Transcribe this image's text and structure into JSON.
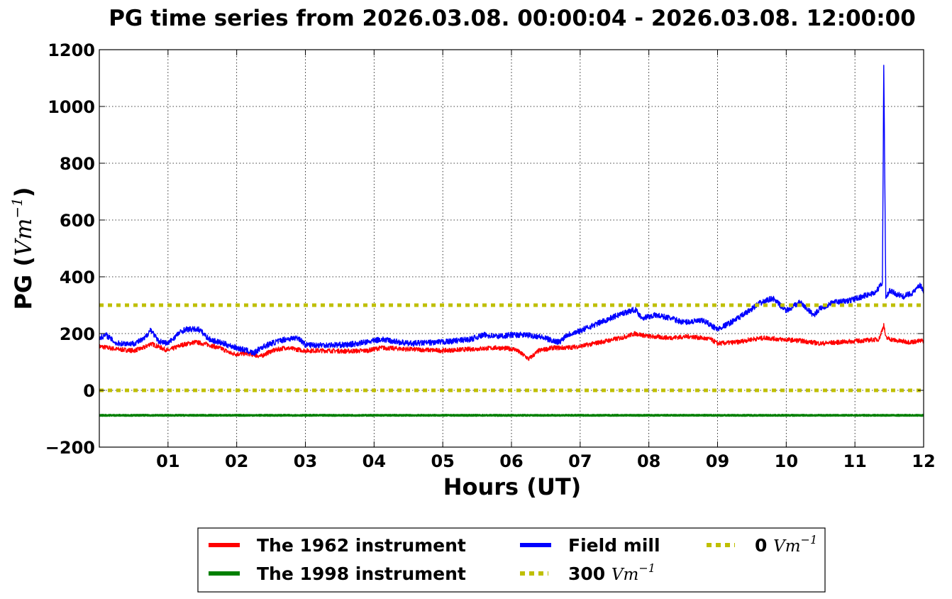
{
  "chart_data": {
    "type": "line",
    "title": "PG time series from 2026.03.08. 00:00:04 - 2026.03.08. 12:00:00",
    "xlabel": "Hours (UT)",
    "ylabel": {
      "prefix": "PG (",
      "unit": "Vm",
      "exp": "−1",
      "suffix": ")"
    },
    "xlim": [
      0,
      12
    ],
    "ylim": [
      -200,
      1200
    ],
    "grid": true,
    "x_ticks": [
      {
        "v": 1,
        "label": "01"
      },
      {
        "v": 2,
        "label": "02"
      },
      {
        "v": 3,
        "label": "03"
      },
      {
        "v": 4,
        "label": "04"
      },
      {
        "v": 5,
        "label": "05"
      },
      {
        "v": 6,
        "label": "06"
      },
      {
        "v": 7,
        "label": "07"
      },
      {
        "v": 8,
        "label": "08"
      },
      {
        "v": 9,
        "label": "09"
      },
      {
        "v": 10,
        "label": "10"
      },
      {
        "v": 11,
        "label": "11"
      },
      {
        "v": 12,
        "label": "12"
      }
    ],
    "y_ticks": [
      {
        "v": -200,
        "label": "−200"
      },
      {
        "v": 0,
        "label": "0"
      },
      {
        "v": 200,
        "label": "200"
      },
      {
        "v": 400,
        "label": "400"
      },
      {
        "v": 600,
        "label": "600"
      },
      {
        "v": 800,
        "label": "800"
      },
      {
        "v": 1000,
        "label": "1000"
      },
      {
        "v": 1200,
        "label": "1200"
      }
    ],
    "series": [
      {
        "name": "The 1962 instrument",
        "color": "#ff0000",
        "style": "solid",
        "x": [
          0,
          0.25,
          0.5,
          0.65,
          0.75,
          0.9,
          1.0,
          1.2,
          1.4,
          1.6,
          1.8,
          1.92,
          2.0,
          2.15,
          2.25,
          2.35,
          2.5,
          2.7,
          3.0,
          3.3,
          3.6,
          3.9,
          4.1,
          4.5,
          5.0,
          5.4,
          5.8,
          6.05,
          6.2,
          6.25,
          6.4,
          6.6,
          6.8,
          7.0,
          7.2,
          7.4,
          7.6,
          7.8,
          8.0,
          8.3,
          8.6,
          8.9,
          9.0,
          9.3,
          9.5,
          9.7,
          9.9,
          10.2,
          10.5,
          10.8,
          11.1,
          11.35,
          11.42,
          11.45,
          11.6,
          11.8,
          12.0
        ],
        "y": [
          155,
          145,
          140,
          150,
          165,
          150,
          140,
          160,
          170,
          160,
          145,
          130,
          128,
          130,
          125,
          120,
          138,
          150,
          140,
          140,
          138,
          140,
          150,
          145,
          140,
          145,
          150,
          145,
          120,
          110,
          140,
          150,
          150,
          155,
          165,
          175,
          185,
          200,
          190,
          185,
          190,
          180,
          165,
          170,
          180,
          185,
          180,
          175,
          165,
          170,
          175,
          180,
          230,
          185,
          175,
          170,
          175
        ]
      },
      {
        "name": "The 1998 instrument",
        "color": "#008000",
        "style": "solid",
        "x": [
          0,
          12
        ],
        "y": [
          -88,
          -88
        ]
      },
      {
        "name": "Field mill",
        "color": "#0000ff",
        "style": "solid",
        "x": [
          0,
          0.1,
          0.25,
          0.5,
          0.65,
          0.75,
          0.85,
          1.0,
          1.15,
          1.25,
          1.45,
          1.6,
          1.8,
          2.0,
          2.15,
          2.25,
          2.35,
          2.5,
          2.7,
          2.9,
          3.0,
          3.3,
          3.6,
          3.9,
          4.1,
          4.5,
          5.0,
          5.4,
          5.6,
          5.8,
          6.0,
          6.2,
          6.4,
          6.6,
          6.7,
          6.8,
          7.0,
          7.2,
          7.4,
          7.6,
          7.8,
          7.9,
          8.1,
          8.3,
          8.5,
          8.8,
          9.0,
          9.2,
          9.4,
          9.6,
          9.8,
          10.0,
          10.2,
          10.4,
          10.5,
          10.7,
          10.9,
          11.1,
          11.3,
          11.4,
          11.42,
          11.45,
          11.5,
          11.7,
          11.85,
          11.95,
          12.0
        ],
        "y": [
          185,
          195,
          165,
          165,
          180,
          215,
          175,
          165,
          200,
          215,
          215,
          180,
          165,
          150,
          140,
          130,
          150,
          165,
          180,
          185,
          160,
          160,
          160,
          170,
          180,
          165,
          170,
          180,
          195,
          190,
          195,
          195,
          190,
          175,
          170,
          195,
          210,
          230,
          250,
          270,
          285,
          255,
          265,
          255,
          240,
          245,
          215,
          240,
          270,
          305,
          325,
          280,
          310,
          265,
          290,
          310,
          315,
          330,
          345,
          380,
          1145,
          320,
          350,
          330,
          345,
          370,
          350
        ]
      },
      {
        "name": "300",
        "legend_unit": "Vm",
        "legend_exp": "−1",
        "color": "#bfbf00",
        "style": "dotted",
        "x": [
          0,
          12
        ],
        "y": [
          300,
          300
        ]
      },
      {
        "name": "0",
        "legend_unit": "Vm",
        "legend_exp": "−1",
        "color": "#bfbf00",
        "style": "dotted",
        "x": [
          0,
          12
        ],
        "y": [
          0,
          0
        ]
      }
    ],
    "legend": {
      "placement": "bottom-center",
      "items": [
        {
          "label": "The 1962 instrument",
          "color": "#ff0000",
          "style": "solid",
          "unit": "",
          "exp": ""
        },
        {
          "label": "The 1998 instrument",
          "color": "#008000",
          "style": "solid",
          "unit": "",
          "exp": ""
        },
        {
          "label": "Field mill",
          "color": "#0000ff",
          "style": "solid",
          "unit": "",
          "exp": ""
        },
        {
          "label": "300 ",
          "color": "#bfbf00",
          "style": "dotted",
          "unit": "Vm",
          "exp": "−1"
        },
        {
          "label": "0 ",
          "color": "#bfbf00",
          "style": "dotted",
          "unit": "Vm",
          "exp": "−1"
        }
      ]
    }
  }
}
